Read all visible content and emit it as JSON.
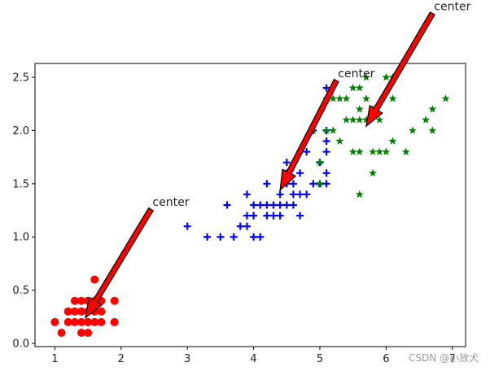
{
  "chart_data": {
    "type": "scatter",
    "xlim": [
      0.7,
      7.2
    ],
    "ylim": [
      -0.03,
      2.63
    ],
    "xticks": [
      1,
      2,
      3,
      4,
      5,
      6,
      7
    ],
    "yticks": [
      0.0,
      0.5,
      1.0,
      1.5,
      2.0,
      2.5
    ],
    "xtick_labels": [
      "1",
      "2",
      "3",
      "4",
      "5",
      "6",
      "7"
    ],
    "ytick_labels": [
      "0.0",
      "0.5",
      "1.0",
      "1.5",
      "2.0",
      "2.5"
    ],
    "grid": false,
    "series": [
      {
        "marker": "circle",
        "color": "#ff0000",
        "points": [
          [
            1.0,
            0.2
          ],
          [
            1.1,
            0.1
          ],
          [
            1.2,
            0.2
          ],
          [
            1.3,
            0.2
          ],
          [
            1.3,
            0.3
          ],
          [
            1.3,
            0.4
          ],
          [
            1.4,
            0.2
          ],
          [
            1.4,
            0.3
          ],
          [
            1.4,
            0.1
          ],
          [
            1.5,
            0.2
          ],
          [
            1.5,
            0.1
          ],
          [
            1.5,
            0.3
          ],
          [
            1.5,
            0.4
          ],
          [
            1.6,
            0.2
          ],
          [
            1.6,
            0.4
          ],
          [
            1.6,
            0.6
          ],
          [
            1.6,
            0.3
          ],
          [
            1.7,
            0.2
          ],
          [
            1.7,
            0.3
          ],
          [
            1.7,
            0.4
          ],
          [
            1.9,
            0.2
          ],
          [
            1.9,
            0.4
          ],
          [
            1.2,
            0.3
          ],
          [
            1.4,
            0.4
          ],
          [
            1.5,
            0.2
          ]
        ]
      },
      {
        "marker": "plus",
        "color": "#0000ff",
        "points": [
          [
            3.0,
            1.1
          ],
          [
            3.3,
            1.0
          ],
          [
            3.5,
            1.0
          ],
          [
            3.6,
            1.3
          ],
          [
            3.7,
            1.0
          ],
          [
            3.8,
            1.1
          ],
          [
            3.9,
            1.1
          ],
          [
            3.9,
            1.2
          ],
          [
            3.9,
            1.4
          ],
          [
            4.0,
            1.0
          ],
          [
            4.0,
            1.3
          ],
          [
            4.0,
            1.2
          ],
          [
            4.1,
            1.0
          ],
          [
            4.1,
            1.3
          ],
          [
            4.2,
            1.2
          ],
          [
            4.2,
            1.3
          ],
          [
            4.2,
            1.5
          ],
          [
            4.3,
            1.3
          ],
          [
            4.3,
            1.2
          ],
          [
            4.4,
            1.3
          ],
          [
            4.4,
            1.4
          ],
          [
            4.4,
            1.2
          ],
          [
            4.5,
            1.5
          ],
          [
            4.5,
            1.3
          ],
          [
            4.5,
            1.6
          ],
          [
            4.5,
            1.7
          ],
          [
            4.6,
            1.4
          ],
          [
            4.6,
            1.3
          ],
          [
            4.6,
            1.5
          ],
          [
            4.7,
            1.4
          ],
          [
            4.7,
            1.6
          ],
          [
            4.7,
            1.2
          ],
          [
            4.8,
            1.4
          ],
          [
            4.8,
            1.8
          ],
          [
            4.9,
            1.5
          ],
          [
            4.9,
            2.0
          ],
          [
            5.0,
            1.7
          ],
          [
            5.0,
            1.5
          ],
          [
            5.1,
            1.6
          ],
          [
            5.1,
            1.5
          ],
          [
            5.1,
            1.8
          ],
          [
            5.1,
            1.9
          ],
          [
            5.1,
            2.0
          ],
          [
            5.1,
            2.4
          ]
        ]
      },
      {
        "marker": "star",
        "color": "#008000",
        "points": [
          [
            4.9,
            2.0
          ],
          [
            5.0,
            1.5
          ],
          [
            5.0,
            1.7
          ],
          [
            5.1,
            2.0
          ],
          [
            5.1,
            2.3
          ],
          [
            5.2,
            2.0
          ],
          [
            5.2,
            2.3
          ],
          [
            5.3,
            1.9
          ],
          [
            5.3,
            2.3
          ],
          [
            5.4,
            2.1
          ],
          [
            5.5,
            1.8
          ],
          [
            5.5,
            2.1
          ],
          [
            5.6,
            1.8
          ],
          [
            5.6,
            2.1
          ],
          [
            5.6,
            2.2
          ],
          [
            5.6,
            2.4
          ],
          [
            5.6,
            1.4
          ],
          [
            5.7,
            2.1
          ],
          [
            5.7,
            2.3
          ],
          [
            5.7,
            2.5
          ],
          [
            5.8,
            1.8
          ],
          [
            5.8,
            2.2
          ],
          [
            5.9,
            2.1
          ],
          [
            5.9,
            1.8
          ],
          [
            6.0,
            1.8
          ],
          [
            6.0,
            2.5
          ],
          [
            6.1,
            1.9
          ],
          [
            6.1,
            2.3
          ],
          [
            6.1,
            2.5
          ],
          [
            6.3,
            1.8
          ],
          [
            6.4,
            2.0
          ],
          [
            6.6,
            2.1
          ],
          [
            6.7,
            2.0
          ],
          [
            6.7,
            2.2
          ],
          [
            6.9,
            2.3
          ],
          [
            5.4,
            2.3
          ],
          [
            5.5,
            2.4
          ],
          [
            5.8,
            1.6
          ]
        ]
      }
    ],
    "annotations": [
      {
        "text": "center",
        "text_xy": [
          2.45,
          1.26
        ],
        "arrow_to": [
          1.46,
          0.24
        ]
      },
      {
        "text": "center",
        "text_xy": [
          5.25,
          2.47
        ],
        "arrow_to": [
          4.4,
          1.44
        ]
      },
      {
        "text": "center",
        "text_xy": [
          6.7,
          3.1
        ],
        "arrow_to": [
          5.7,
          2.04
        ]
      }
    ]
  },
  "watermark": "CSDN @小放犬"
}
